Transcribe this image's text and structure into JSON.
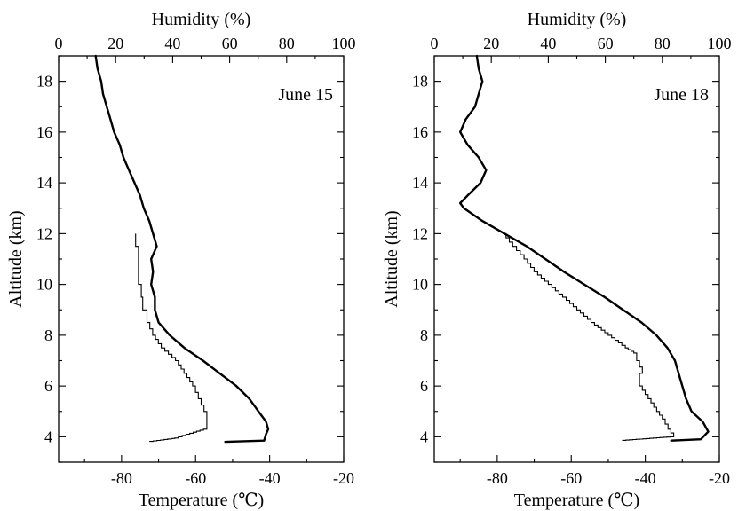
{
  "chart_data": [
    {
      "type": "line",
      "panel_label": "June 15",
      "ylabel": "Altitude (km)",
      "xlabel_bottom": "Temperature (℃)",
      "xlabel_top": "Humidity (%)",
      "ylim": [
        3,
        19
      ],
      "yticks": [
        4,
        6,
        8,
        10,
        12,
        14,
        16,
        18
      ],
      "x_bottom_lim": [
        -97,
        -20
      ],
      "x_bottom_ticks": [
        -80,
        -60,
        -40,
        -20
      ],
      "x_top_lim": [
        0,
        100
      ],
      "x_top_ticks": [
        0,
        20,
        40,
        60,
        80,
        100
      ],
      "grid": false,
      "series": [
        {
          "axis": "temperature",
          "style": "thick",
          "points": [
            [
              -52,
              3.8
            ],
            [
              -41.5,
              3.85
            ],
            [
              -41,
              4.1
            ],
            [
              -40.4,
              4.3
            ],
            [
              -41,
              4.6
            ],
            [
              -43,
              5.0
            ],
            [
              -45.5,
              5.5
            ],
            [
              -49,
              6.0
            ],
            [
              -53.5,
              6.5
            ],
            [
              -58,
              7.0
            ],
            [
              -63,
              7.5
            ],
            [
              -67,
              8.0
            ],
            [
              -70,
              8.5
            ],
            [
              -71,
              9.0
            ],
            [
              -71,
              9.5
            ],
            [
              -72,
              10.0
            ],
            [
              -71.5,
              10.5
            ],
            [
              -72,
              11.0
            ],
            [
              -70.5,
              11.5
            ],
            [
              -71.5,
              12.0
            ],
            [
              -72.5,
              12.5
            ],
            [
              -74,
              13.0
            ],
            [
              -75,
              13.5
            ],
            [
              -76.5,
              14.0
            ],
            [
              -78,
              14.5
            ],
            [
              -79.5,
              15.0
            ],
            [
              -80.5,
              15.5
            ],
            [
              -82,
              16.0
            ],
            [
              -83,
              16.5
            ],
            [
              -84,
              17.0
            ],
            [
              -85,
              17.5
            ],
            [
              -85.5,
              18.0
            ],
            [
              -86.5,
              18.5
            ],
            [
              -87,
              19.0
            ]
          ]
        },
        {
          "axis": "humidity",
          "style": "thin",
          "points": [
            [
              32,
              3.8
            ],
            [
              42,
              3.95
            ],
            [
              46,
              4.1
            ],
            [
              52,
              4.3
            ],
            [
              52,
              4.6
            ],
            [
              51,
              5.0
            ],
            [
              49,
              5.5
            ],
            [
              47,
              6.0
            ],
            [
              44,
              6.5
            ],
            [
              41,
              7.0
            ],
            [
              36,
              7.5
            ],
            [
              33,
              8.0
            ],
            [
              31,
              8.5
            ],
            [
              29.5,
              9.0
            ],
            [
              29,
              9.5
            ],
            [
              28,
              10.0
            ],
            [
              28,
              10.5
            ],
            [
              28,
              11.0
            ],
            [
              27,
              11.5
            ],
            [
              27,
              12.0
            ]
          ]
        }
      ]
    },
    {
      "type": "line",
      "panel_label": "June 18",
      "ylabel": "Altitude (km)",
      "xlabel_bottom": "Temperature (℃)",
      "xlabel_top": "Humidity (%)",
      "ylim": [
        3,
        19
      ],
      "yticks": [
        4,
        6,
        8,
        10,
        12,
        14,
        16,
        18
      ],
      "x_bottom_lim": [
        -97,
        -20
      ],
      "x_bottom_ticks": [
        -80,
        -60,
        -40,
        -20
      ],
      "x_top_lim": [
        0,
        100
      ],
      "x_top_ticks": [
        0,
        20,
        40,
        60,
        80,
        100
      ],
      "grid": false,
      "series": [
        {
          "axis": "temperature",
          "style": "thick",
          "points": [
            [
              -33,
              3.85
            ],
            [
              -25,
              3.9
            ],
            [
              -23,
              4.2
            ],
            [
              -24.5,
              4.6
            ],
            [
              -27.5,
              5.0
            ],
            [
              -29,
              5.5
            ],
            [
              -30,
              6.0
            ],
            [
              -32,
              7.0
            ],
            [
              -34,
              7.5
            ],
            [
              -37,
              8.0
            ],
            [
              -41,
              8.5
            ],
            [
              -46,
              9.0
            ],
            [
              -51,
              9.5
            ],
            [
              -56.5,
              10.0
            ],
            [
              -62,
              10.5
            ],
            [
              -67,
              11.0
            ],
            [
              -72,
              11.5
            ],
            [
              -78,
              12.0
            ],
            [
              -84,
              12.5
            ],
            [
              -89,
              13.0
            ],
            [
              -90,
              13.2
            ],
            [
              -88,
              13.5
            ],
            [
              -84.5,
              14.0
            ],
            [
              -83,
              14.5
            ],
            [
              -85,
              15.0
            ],
            [
              -88,
              15.5
            ],
            [
              -90,
              16.0
            ],
            [
              -88.5,
              16.5
            ],
            [
              -86,
              17.0
            ],
            [
              -85,
              17.5
            ],
            [
              -84,
              18.0
            ],
            [
              -85,
              18.5
            ],
            [
              -85.5,
              19.0
            ]
          ]
        },
        {
          "axis": "humidity",
          "style": "thin",
          "points": [
            [
              66,
              3.85
            ],
            [
              84,
              4.0
            ],
            [
              82,
              4.3
            ],
            [
              80,
              4.7
            ],
            [
              78,
              5.0
            ],
            [
              75,
              5.5
            ],
            [
              72,
              6.0
            ],
            [
              73,
              6.5
            ],
            [
              71,
              7.0
            ],
            [
              70,
              7.3
            ],
            [
              67,
              7.5
            ],
            [
              61,
              8.0
            ],
            [
              55,
              8.5
            ],
            [
              50,
              9.0
            ],
            [
              45,
              9.5
            ],
            [
              40,
              10.0
            ],
            [
              35,
              10.5
            ],
            [
              31.5,
              11.0
            ],
            [
              27.5,
              11.5
            ],
            [
              24,
              12.0
            ]
          ]
        }
      ]
    }
  ]
}
